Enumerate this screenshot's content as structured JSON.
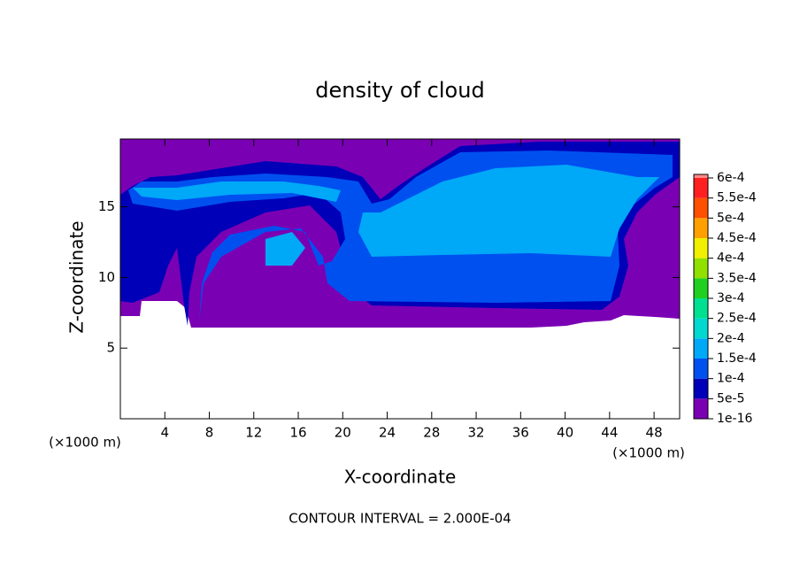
{
  "chart_data": {
    "type": "contour",
    "title": "density of cloud",
    "x_label": "X-coordinate",
    "y_label": "Z-coordinate",
    "x_unit_label": "(×1000 m)",
    "y_unit_label": "(×1000 m)",
    "footnote": "CONTOUR INTERVAL = 2.000E-04",
    "xlim": [
      0,
      50.3
    ],
    "ylim": [
      0,
      19.8
    ],
    "xticks": [
      4,
      8,
      12,
      16,
      20,
      24,
      28,
      32,
      36,
      40,
      44,
      48
    ],
    "yticks": [
      5,
      10,
      15
    ],
    "colorbar": {
      "levels": [
        1e-16,
        {
          "value": 5e-05,
          "label": "5e-5"
        },
        {
          "value": 0.0001,
          "label": "1e-4"
        },
        {
          "value": 0.00015,
          "label": "1.5e-4"
        },
        {
          "value": 0.0002,
          "label": "2e-4"
        },
        {
          "value": 0.00025,
          "label": "2.5e-4"
        },
        {
          "value": 0.0003,
          "label": "3e-4"
        },
        {
          "value": 0.00035,
          "label": "3.5e-4"
        },
        {
          "value": 0.0004,
          "label": "4e-4"
        },
        {
          "value": 0.00045,
          "label": "4.5e-4"
        },
        {
          "value": 0.0005,
          "label": "5e-4"
        },
        {
          "value": 0.00055,
          "label": "5.5e-4"
        },
        {
          "value": 0.0006,
          "label": "6e-4"
        }
      ],
      "colors": [
        "#7a00b4",
        "#0000b8",
        "#0050f0",
        "#00a8f8",
        "#00d8d0",
        "#00e090",
        "#20d020",
        "#90e000",
        "#f0f000",
        "#ffa000",
        "#ff5000",
        "#ff2020",
        "#ff8888"
      ]
    }
  }
}
